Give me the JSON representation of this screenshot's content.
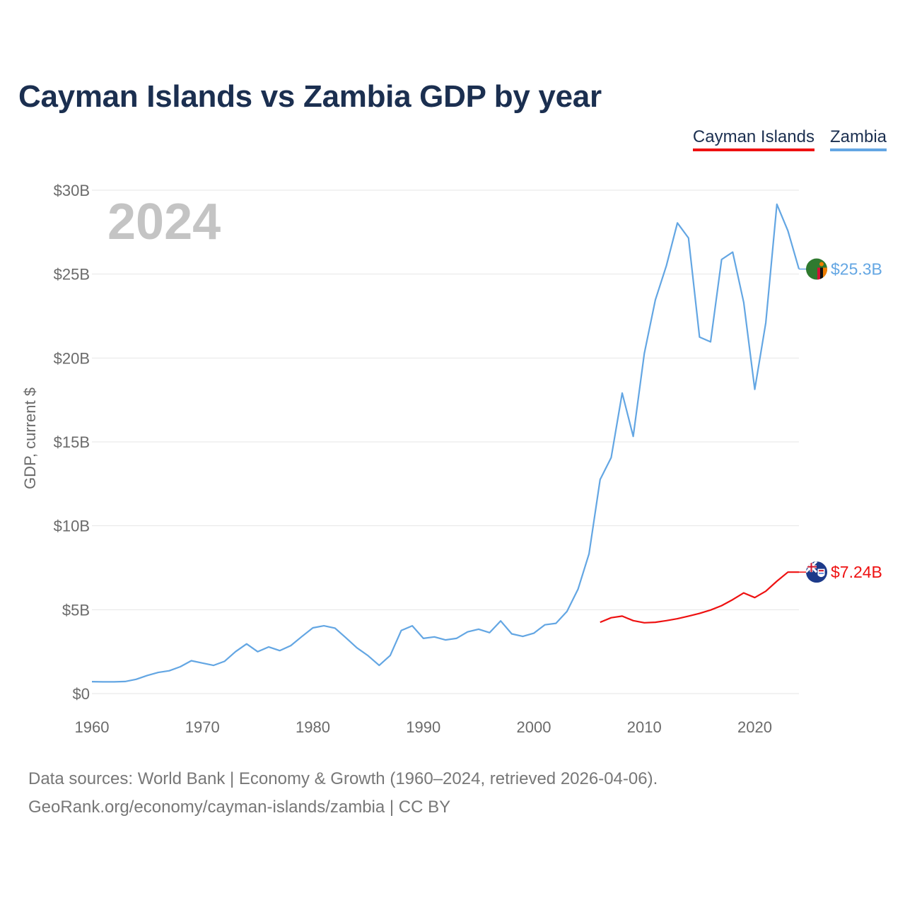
{
  "title": "Cayman Islands vs Zambia GDP by year",
  "footer": {
    "line1": "Data sources: World Bank | Economy & Growth (1960–2024, retrieved 2026-04-06).",
    "line2": "GeoRank.org/economy/cayman-islands/zambia | CC BY"
  },
  "chart_data": {
    "type": "line",
    "title": "Cayman Islands vs Zambia GDP by year",
    "xlabel": "",
    "ylabel": "GDP, current $",
    "xlim": [
      1960,
      2024
    ],
    "ylim": [
      0,
      30
    ],
    "y_unit": "billion USD",
    "current_year_label": "2024",
    "x_ticks": [
      1960,
      1970,
      1980,
      1990,
      2000,
      2010,
      2020
    ],
    "x_tick_labels": [
      "1960",
      "1970",
      "1980",
      "1990",
      "2000",
      "2010",
      "2020"
    ],
    "y_ticks": [
      0,
      5,
      10,
      15,
      20,
      25,
      30
    ],
    "y_tick_labels": [
      "$0",
      "$5B",
      "$10B",
      "$15B",
      "$20B",
      "$25B",
      "$30B"
    ],
    "grid": true,
    "legend_position": "top-right",
    "series": [
      {
        "name": "Cayman Islands",
        "color": "#ee1111",
        "flag_icon": "cayman-islands-flag-icon",
        "end_label": "$7.24B",
        "end_value": 7.24,
        "x": [
          2006,
          2007,
          2008,
          2009,
          2010,
          2011,
          2012,
          2013,
          2014,
          2015,
          2016,
          2017,
          2018,
          2019,
          2020,
          2021,
          2022,
          2023,
          2024
        ],
        "values": [
          4.25,
          4.52,
          4.62,
          4.35,
          4.22,
          4.25,
          4.35,
          4.46,
          4.62,
          4.78,
          4.98,
          5.24,
          5.6,
          6.0,
          5.72,
          6.1,
          6.7,
          7.24,
          7.24
        ]
      },
      {
        "name": "Zambia",
        "color": "#63a6e3",
        "flag_icon": "zambia-flag-icon",
        "end_label": "$25.3B",
        "end_value": 25.3,
        "x": [
          1960,
          1961,
          1962,
          1963,
          1964,
          1965,
          1966,
          1967,
          1968,
          1969,
          1970,
          1971,
          1972,
          1973,
          1974,
          1975,
          1976,
          1977,
          1978,
          1979,
          1980,
          1981,
          1982,
          1983,
          1984,
          1985,
          1986,
          1987,
          1988,
          1989,
          1990,
          1991,
          1992,
          1993,
          1994,
          1995,
          1996,
          1997,
          1998,
          1999,
          2000,
          2001,
          2002,
          2003,
          2004,
          2005,
          2006,
          2007,
          2008,
          2009,
          2010,
          2011,
          2012,
          2013,
          2014,
          2015,
          2016,
          2017,
          2018,
          2019,
          2020,
          2021,
          2022,
          2023,
          2024
        ],
        "values": [
          0.71,
          0.7,
          0.7,
          0.72,
          0.85,
          1.08,
          1.26,
          1.36,
          1.6,
          1.96,
          1.82,
          1.68,
          1.92,
          2.5,
          2.96,
          2.5,
          2.78,
          2.56,
          2.86,
          3.4,
          3.92,
          4.04,
          3.9,
          3.32,
          2.72,
          2.26,
          1.68,
          2.27,
          3.76,
          4.04,
          3.29,
          3.38,
          3.2,
          3.29,
          3.68,
          3.84,
          3.63,
          4.33,
          3.56,
          3.41,
          3.6,
          4.1,
          4.19,
          4.9,
          6.22,
          8.33,
          12.76,
          14.06,
          17.91,
          15.33,
          20.27,
          23.46,
          25.5,
          28.05,
          27.15,
          21.25,
          20.96,
          25.87,
          26.31,
          23.31,
          18.13,
          22.1,
          29.16,
          27.58,
          25.3
        ]
      }
    ]
  }
}
